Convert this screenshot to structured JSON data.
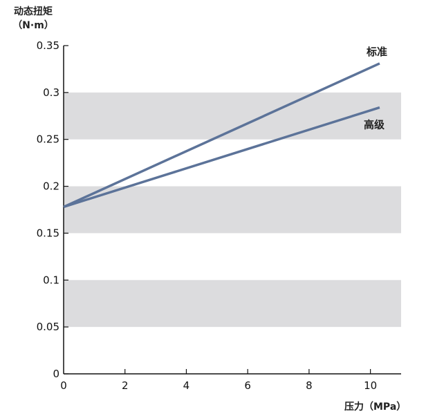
{
  "chart_data": {
    "type": "line",
    "title": "",
    "ylabel_line1": "动态扭矩",
    "ylabel_line2": "（N·m）",
    "xlabel": "压力（MPa）",
    "xlim": [
      0,
      11.0
    ],
    "ylim": [
      0,
      0.35
    ],
    "xticks": [
      0,
      2,
      4,
      6,
      8,
      10
    ],
    "yticks": [
      0,
      0.05,
      0.1,
      0.15,
      0.2,
      0.25,
      0.3,
      0.35
    ],
    "ytick_labels": [
      "0",
      "0.05",
      "0.1",
      "0.15",
      "0.2",
      "0.25",
      "0.3",
      "0.35"
    ],
    "xtick_labels": [
      "0",
      "2",
      "4",
      "6",
      "8",
      "10"
    ],
    "bands": [
      [
        0.05,
        0.1
      ],
      [
        0.15,
        0.2
      ],
      [
        0.25,
        0.3
      ]
    ],
    "band_color": "#dcdcde",
    "grid": false,
    "series": [
      {
        "name": "标准",
        "x": [
          0,
          10.3
        ],
        "y": [
          0.178,
          0.331
        ],
        "color": "#5c7399"
      },
      {
        "name": "高级",
        "x": [
          0,
          10.3
        ],
        "y": [
          0.178,
          0.284
        ],
        "color": "#5c7399"
      }
    ]
  }
}
